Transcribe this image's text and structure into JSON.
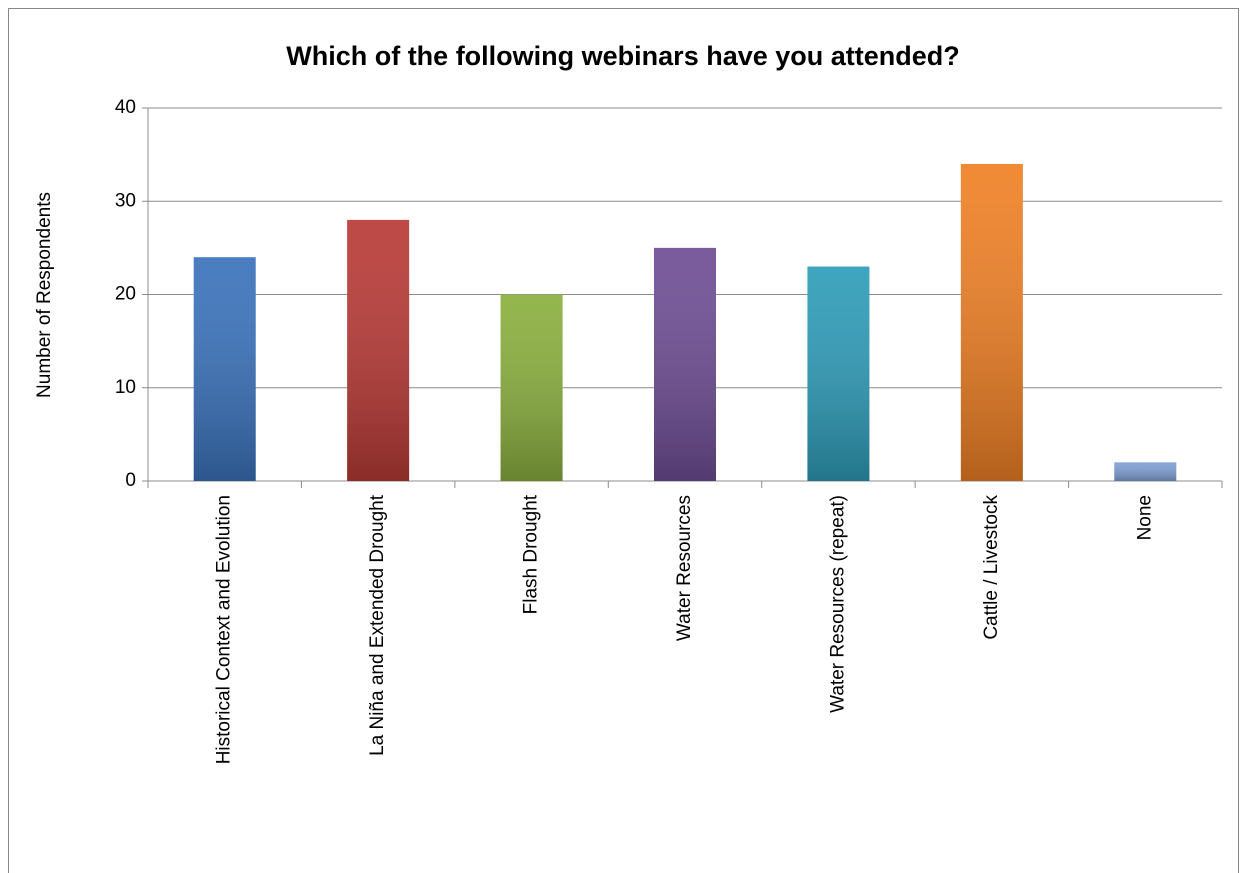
{
  "chart_data": {
    "type": "bar",
    "title": "Which of the following webinars have you attended?",
    "y_label": "Number of Respondents",
    "categories": [
      "Historical Context and Evolution",
      "La Niña and Extended Drought",
      "Flash Drought",
      "Water Resources",
      "Water Resources (repeat)",
      "Cattle / Livestock",
      "None"
    ],
    "values": [
      24,
      28,
      20,
      25,
      23,
      34,
      2
    ],
    "colors": [
      "#3a72bb",
      "#b83a36",
      "#8aaf3e",
      "#6e4d94",
      "#2e9cb8",
      "#ef8025",
      "#7f9fd4"
    ],
    "ylim": [
      0,
      40
    ],
    "yticks": [
      0,
      10,
      20,
      30,
      40
    ],
    "grid": true
  }
}
